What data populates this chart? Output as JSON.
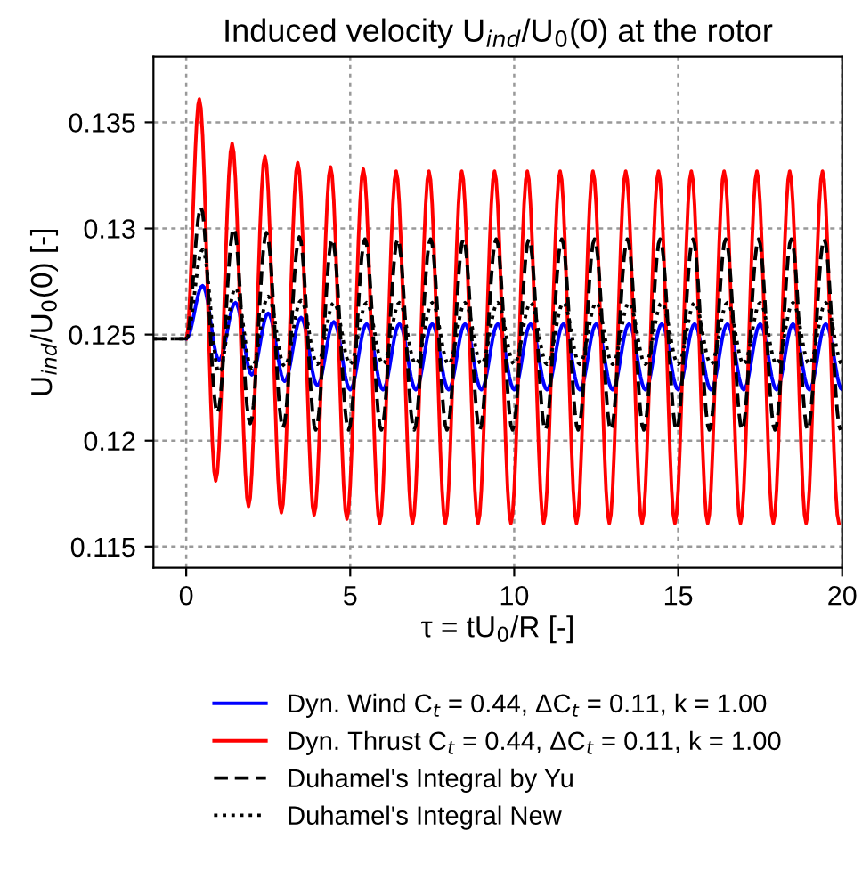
{
  "chart_data": {
    "type": "line",
    "title": "Induced velocity U$_{ind}$/U$_{0}$(0) at the rotor",
    "xlabel": "τ = tU$_{0}$/R [-]",
    "ylabel": "U$_{ind}$/U$_{0}$(0) [-]",
    "xlim": [
      -1,
      20
    ],
    "ylim": [
      0.114,
      0.1381
    ],
    "xticks": [
      0,
      5,
      10,
      15,
      20
    ],
    "yticks": [
      0.115,
      0.12,
      0.125,
      0.13,
      0.135
    ],
    "grid": true,
    "legend": "bottom",
    "marker": "none",
    "series": [
      {
        "name": "Dyn. Wind C$_{t}$ = 0.44, ΔC$_{t}$ = 0.11, k = 1.00",
        "color": "#0000ff",
        "line_style": "solid",
        "x": [
          0,
          0.5,
          1,
          1.5,
          2,
          2.5,
          3,
          3.5,
          4,
          4.5,
          5,
          5.5,
          6,
          6.5,
          7,
          7.5,
          8,
          8.5,
          9,
          9.5,
          10,
          10.5,
          11,
          11.5,
          12,
          12.5,
          13,
          13.5,
          14,
          14.5,
          15,
          15.5,
          16,
          16.5,
          17,
          17.5,
          18,
          18.5,
          19,
          19.5,
          20
        ],
        "values": [
          0.1248,
          0.1273,
          0.1238,
          0.1265,
          0.1231,
          0.126,
          0.1228,
          0.1258,
          0.1226,
          0.1256,
          0.1224,
          0.1255,
          0.1224,
          0.1255,
          0.1224,
          0.1255,
          0.1224,
          0.1255,
          0.1224,
          0.1255,
          0.1224,
          0.1255,
          0.1224,
          0.1255,
          0.1224,
          0.1255,
          0.1224,
          0.1255,
          0.1224,
          0.1255,
          0.1224,
          0.1255,
          0.1224,
          0.1255,
          0.1224,
          0.1255,
          0.1224,
          0.1255,
          0.1224,
          0.1255,
          0.1224
        ]
      },
      {
        "name": "Dyn. Thrust C$_{t}$ = 0.44, ΔC$_{t}$ = 0.11, k = 1.00",
        "color": "#ff0000",
        "line_style": "solid",
        "x": [
          0,
          0.4,
          0.9,
          1.4,
          1.9,
          2.4,
          2.9,
          3.4,
          3.9,
          4.4,
          4.9,
          5.4,
          5.9,
          6.4,
          6.9,
          7.4,
          7.9,
          8.4,
          8.9,
          9.4,
          9.9,
          10.4,
          10.9,
          11.4,
          11.9,
          12.4,
          12.9,
          13.4,
          13.9,
          14.4,
          14.9,
          15.4,
          15.9,
          16.4,
          16.9,
          17.4,
          17.9,
          18.4,
          18.9,
          19.4,
          19.9
        ],
        "values": [
          0.1248,
          0.1361,
          0.1181,
          0.134,
          0.1169,
          0.1334,
          0.1166,
          0.1331,
          0.1165,
          0.1329,
          0.1163,
          0.1328,
          0.1161,
          0.1327,
          0.1161,
          0.1327,
          0.1161,
          0.1327,
          0.1161,
          0.1327,
          0.1161,
          0.1327,
          0.1161,
          0.1327,
          0.1161,
          0.1327,
          0.1161,
          0.1327,
          0.1161,
          0.1327,
          0.1161,
          0.1327,
          0.1161,
          0.1327,
          0.1161,
          0.1327,
          0.1161,
          0.1327,
          0.1161,
          0.1327,
          0.1161
        ]
      },
      {
        "name": "Duhamel's Integral by Yu",
        "color": "#000000",
        "line_style": "dashed",
        "x": [
          -1,
          0,
          0.45,
          0.95,
          1.45,
          1.95,
          2.45,
          2.95,
          3.45,
          3.95,
          4.45,
          4.95,
          5.45,
          5.95,
          6.45,
          6.95,
          7.45,
          7.95,
          8.45,
          8.95,
          9.45,
          9.95,
          10.45,
          10.95,
          11.45,
          11.95,
          12.45,
          12.95,
          13.45,
          13.95,
          14.45,
          14.95,
          15.45,
          15.95,
          16.45,
          16.95,
          17.45,
          17.95,
          18.45,
          18.95,
          19.45,
          19.95
        ],
        "values": [
          0.1248,
          0.1248,
          0.131,
          0.1213,
          0.13,
          0.1208,
          0.1298,
          0.1206,
          0.1296,
          0.1205,
          0.1295,
          0.1205,
          0.1295,
          0.1205,
          0.1295,
          0.1205,
          0.1295,
          0.1205,
          0.1295,
          0.1205,
          0.1295,
          0.1205,
          0.1295,
          0.1205,
          0.1295,
          0.1205,
          0.1295,
          0.1205,
          0.1295,
          0.1205,
          0.1295,
          0.1205,
          0.1295,
          0.1205,
          0.1295,
          0.1205,
          0.1295,
          0.1205,
          0.1295,
          0.1205,
          0.1295,
          0.1205
        ]
      },
      {
        "name": "Duhamel's Integral New",
        "color": "#000000",
        "line_style": "dotted",
        "x": [
          -1,
          0,
          0.5,
          1,
          1.5,
          2,
          2.5,
          3,
          3.5,
          4,
          4.5,
          5,
          5.5,
          6,
          6.5,
          7,
          7.5,
          8,
          8.5,
          9,
          9.5,
          10,
          10.5,
          11,
          11.5,
          12,
          12.5,
          13,
          13.5,
          14,
          14.5,
          15,
          15.5,
          16,
          16.5,
          17,
          17.5,
          18,
          18.5,
          19,
          19.5,
          20
        ],
        "values": [
          0.1248,
          0.1248,
          0.129,
          0.1232,
          0.1272,
          0.1234,
          0.1268,
          0.1235,
          0.1266,
          0.1236,
          0.1265,
          0.1236,
          0.1265,
          0.1236,
          0.1265,
          0.1236,
          0.1265,
          0.1236,
          0.1265,
          0.1236,
          0.1265,
          0.1236,
          0.1265,
          0.1236,
          0.1265,
          0.1236,
          0.1265,
          0.1236,
          0.1265,
          0.1236,
          0.1265,
          0.1236,
          0.1265,
          0.1236,
          0.1265,
          0.1236,
          0.1265,
          0.1236,
          0.1265,
          0.1236,
          0.1265,
          0.1236
        ]
      }
    ]
  }
}
